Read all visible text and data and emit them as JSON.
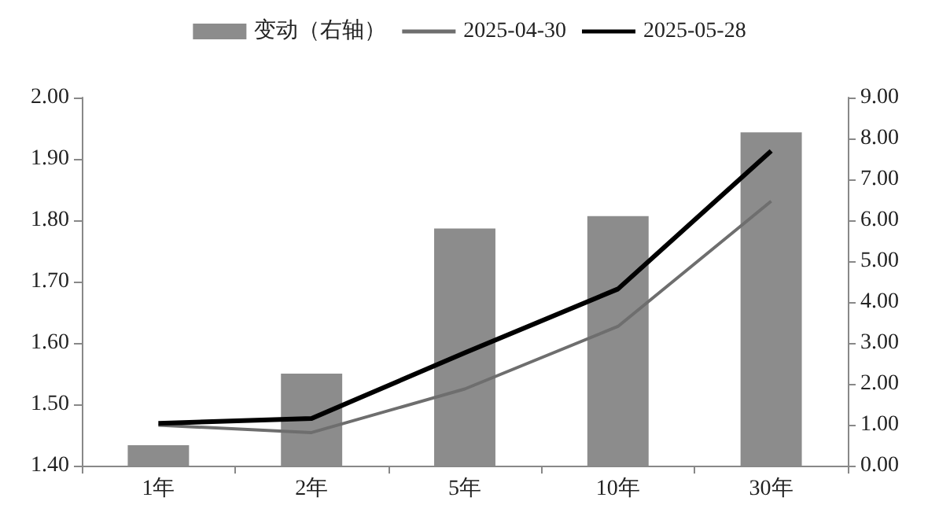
{
  "chart_data": {
    "type": "bar",
    "categories": [
      "1年",
      "2年",
      "5年",
      "10年",
      "30年"
    ],
    "series": [
      {
        "name": "变动（右轴）",
        "axis": "y2",
        "color": "#8c8c8c",
        "values": [
          0.5,
          2.25,
          5.8,
          6.1,
          8.15
        ]
      },
      {
        "name": "2025-04-30",
        "type": "line",
        "color": "#6e6e6e",
        "values": [
          1.466,
          1.454,
          1.525,
          1.627,
          1.831
        ]
      },
      {
        "name": "2025-05-28",
        "type": "line",
        "color": "#000000",
        "values": [
          1.469,
          1.477,
          1.584,
          1.688,
          1.913
        ]
      }
    ],
    "ylim": [
      1.4,
      2.0
    ],
    "yticks": [
      {
        "value": 1.4,
        "label": "1.40"
      },
      {
        "value": 1.5,
        "label": "1.50"
      },
      {
        "value": 1.6,
        "label": "1.60"
      },
      {
        "value": 1.7,
        "label": "1.70"
      },
      {
        "value": 1.8,
        "label": "1.80"
      },
      {
        "value": 1.9,
        "label": "1.90"
      },
      {
        "value": 2,
        "label": "2.00"
      }
    ],
    "y2lim": [
      0,
      9
    ],
    "y2ticks": [
      {
        "value": 0,
        "label": "0.00"
      },
      {
        "value": 1,
        "label": "1.00"
      },
      {
        "value": 2,
        "label": "2.00"
      },
      {
        "value": 3,
        "label": "3.00"
      },
      {
        "value": 4,
        "label": "4.00"
      },
      {
        "value": 5,
        "label": "5.00"
      },
      {
        "value": 6,
        "label": "6.00"
      },
      {
        "value": 7,
        "label": "7.00"
      },
      {
        "value": 8,
        "label": "8.00"
      },
      {
        "value": 9,
        "label": "9.00"
      }
    ],
    "legend": "top",
    "grid": false,
    "marker": "none",
    "line_style": "solid"
  }
}
